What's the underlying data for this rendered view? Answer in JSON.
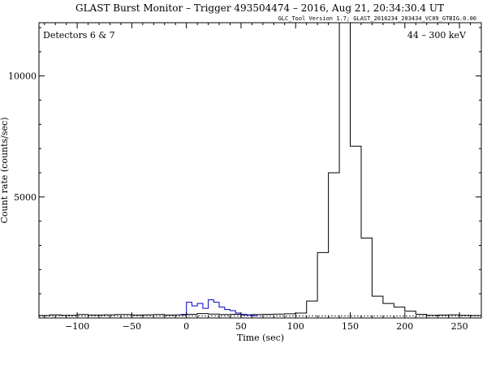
{
  "chart_data": {
    "type": "line",
    "title": "GLAST Burst Monitor  –  Trigger 493504474  –  2016, Aug 21, 20:34:30.4 UT",
    "subtitle": "GLC_Tool Version 1.7; GLAST_2016234_203434_VC09_GTBIG.0.00",
    "xlabel": "Time (sec)",
    "ylabel": "Count rate (counts/sec)",
    "xlim": [
      -135,
      270
    ],
    "ylim": [
      0,
      12200
    ],
    "x_ticks": [
      -100,
      -50,
      0,
      50,
      100,
      150,
      200,
      250
    ],
    "x_tick_labels": [
      "−100",
      "−50",
      "0",
      "50",
      "100",
      "150",
      "200",
      "250"
    ],
    "y_ticks": [
      5000,
      10000
    ],
    "y_tick_labels": [
      "5000",
      "10000"
    ],
    "annotations": {
      "top_left": "Detectors 6 & 7",
      "top_right": "44 – 300 keV"
    },
    "background_level": 80,
    "grid": false,
    "series": [
      {
        "style": "step",
        "color": "#000000",
        "edges": [
          -135,
          -125,
          -115,
          -100,
          -90,
          -75,
          -65,
          -50,
          -40,
          -30,
          -20,
          -10,
          0,
          10,
          20,
          30,
          40,
          50,
          60,
          70,
          80,
          90,
          100,
          110,
          120,
          130,
          140,
          150,
          160,
          170,
          180,
          190,
          200,
          210,
          220,
          230,
          240,
          250,
          260,
          270
        ],
        "values": [
          100,
          130,
          110,
          140,
          120,
          130,
          140,
          120,
          130,
          140,
          120,
          130,
          150,
          180,
          160,
          140,
          150,
          130,
          140,
          150,
          160,
          170,
          200,
          700,
          2700,
          6000,
          12200,
          7100,
          3300,
          900,
          600,
          450,
          280,
          150,
          110,
          120,
          130,
          110,
          100
        ]
      },
      {
        "style": "step",
        "color": "#0000cc",
        "edges": [
          -5,
          0,
          5,
          10,
          15,
          20,
          25,
          30,
          35,
          40,
          45,
          50,
          55,
          60,
          65
        ],
        "values": [
          150,
          650,
          500,
          600,
          400,
          750,
          650,
          450,
          350,
          300,
          200,
          150,
          120,
          90
        ]
      }
    ]
  }
}
